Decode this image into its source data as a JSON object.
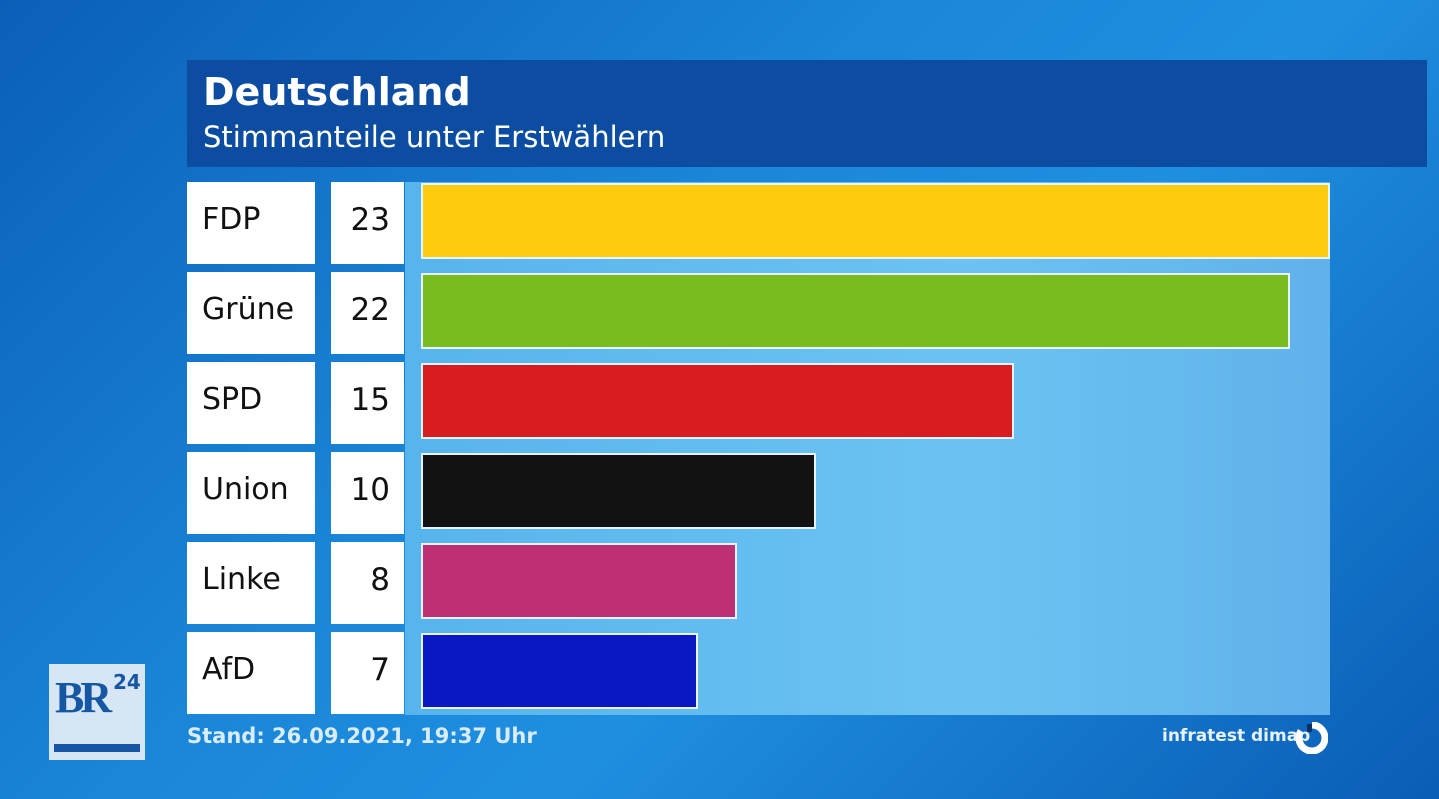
{
  "chart_data": {
    "type": "bar",
    "orientation": "horizontal",
    "title": "Deutschland",
    "subtitle": "Stimmanteile unter Erstwählern",
    "categories": [
      "FDP",
      "Grüne",
      "SPD",
      "Union",
      "Linke",
      "AfD"
    ],
    "values": [
      23,
      22,
      15,
      10,
      8,
      7
    ],
    "colors": [
      "#fecb0f",
      "#78bd1d",
      "#d71d1f",
      "#121212",
      "#bf2f74",
      "#0a17c2"
    ],
    "xlim": [
      0,
      23
    ],
    "grid": false,
    "footer": "Stand: 26.09.2021, 19:37 Uhr",
    "source": "infratest dimap"
  },
  "logo": {
    "text": "BR24"
  }
}
